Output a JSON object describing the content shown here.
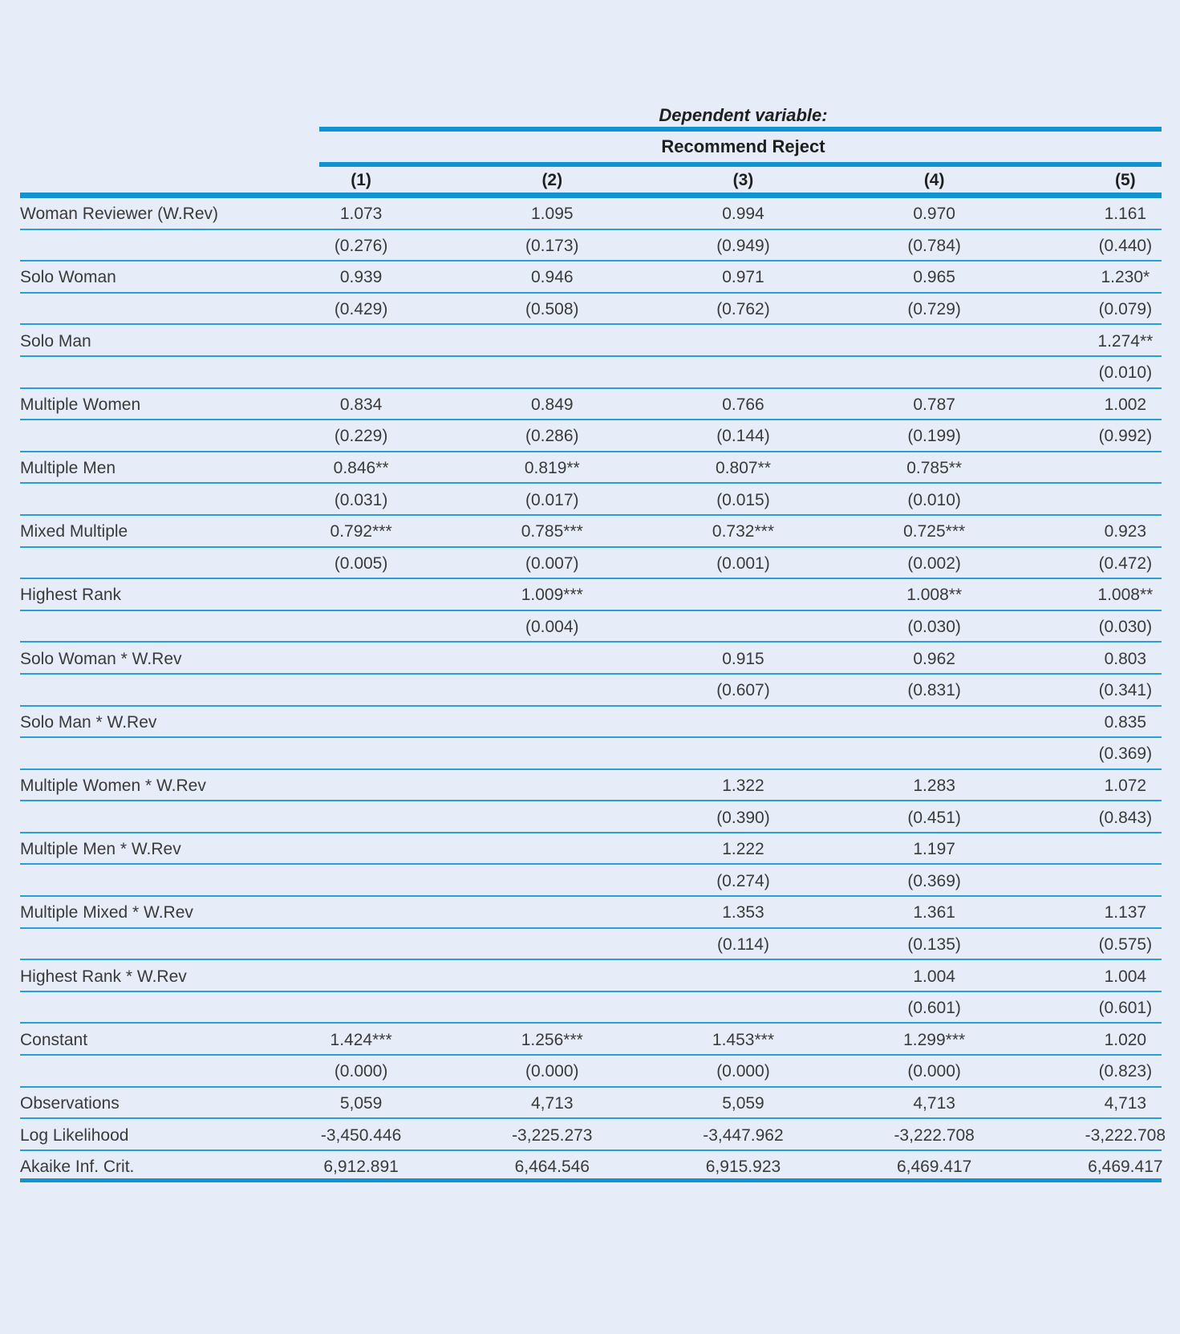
{
  "page": {
    "background": "#e6edf8"
  },
  "table": {
    "dependent_variable_heading": "Dependent variable:",
    "dependent_variable_name": "Recommend Reject",
    "column_headers": [
      "(1)",
      "(2)",
      "(3)",
      "(4)",
      "(5)"
    ],
    "coef_rows": [
      {
        "label": "Woman Reviewer (W.Rev)",
        "values": [
          "1.073",
          "1.095",
          "0.994",
          "0.970",
          "1.161"
        ],
        "pvalues": [
          "(0.276)",
          "(0.173)",
          "(0.949)",
          "(0.784)",
          "(0.440)"
        ]
      },
      {
        "label": "Solo Woman",
        "values": [
          "0.939",
          "0.946",
          "0.971",
          "0.965",
          "1.230*"
        ],
        "pvalues": [
          "(0.429)",
          "(0.508)",
          "(0.762)",
          "(0.729)",
          "(0.079)"
        ]
      },
      {
        "label": "Solo Man",
        "values": [
          "",
          "",
          "",
          "",
          "1.274**"
        ],
        "pvalues": [
          "",
          "",
          "",
          "",
          "(0.010)"
        ]
      },
      {
        "label": "Multiple Women",
        "values": [
          "0.834",
          "0.849",
          "0.766",
          "0.787",
          "1.002"
        ],
        "pvalues": [
          "(0.229)",
          "(0.286)",
          "(0.144)",
          "(0.199)",
          "(0.992)"
        ]
      },
      {
        "label": "Multiple Men",
        "values": [
          "0.846**",
          "0.819**",
          "0.807**",
          "0.785**",
          ""
        ],
        "pvalues": [
          "(0.031)",
          "(0.017)",
          "(0.015)",
          "(0.010)",
          ""
        ]
      },
      {
        "label": "Mixed Multiple",
        "values": [
          "0.792***",
          "0.785***",
          "0.732***",
          "0.725***",
          "0.923"
        ],
        "pvalues": [
          "(0.005)",
          "(0.007)",
          "(0.001)",
          "(0.002)",
          "(0.472)"
        ]
      },
      {
        "label": "Highest Rank",
        "values": [
          "",
          "1.009***",
          "",
          "1.008**",
          "1.008**"
        ],
        "pvalues": [
          "",
          "(0.004)",
          "",
          "(0.030)",
          "(0.030)"
        ]
      },
      {
        "label": "Solo Woman * W.Rev",
        "values": [
          "",
          "",
          "0.915",
          "0.962",
          "0.803"
        ],
        "pvalues": [
          "",
          "",
          "(0.607)",
          "(0.831)",
          "(0.341)"
        ]
      },
      {
        "label": "Solo Man * W.Rev",
        "values": [
          "",
          "",
          "",
          "",
          "0.835"
        ],
        "pvalues": [
          "",
          "",
          "",
          "",
          "(0.369)"
        ]
      },
      {
        "label": "Multiple Women * W.Rev",
        "values": [
          "",
          "",
          "1.322",
          "1.283",
          "1.072"
        ],
        "pvalues": [
          "",
          "",
          "(0.390)",
          "(0.451)",
          "(0.843)"
        ]
      },
      {
        "label": "Multiple Men * W.Rev",
        "values": [
          "",
          "",
          "1.222",
          "1.197",
          ""
        ],
        "pvalues": [
          "",
          "",
          "(0.274)",
          "(0.369)",
          ""
        ]
      },
      {
        "label": "Multiple Mixed * W.Rev",
        "values": [
          "",
          "",
          "1.353",
          "1.361",
          "1.137"
        ],
        "pvalues": [
          "",
          "",
          "(0.114)",
          "(0.135)",
          "(0.575)"
        ]
      },
      {
        "label": "Highest Rank * W.Rev",
        "values": [
          "",
          "",
          "",
          "1.004",
          "1.004"
        ],
        "pvalues": [
          "",
          "",
          "",
          "(0.601)",
          "(0.601)"
        ]
      },
      {
        "label": "Constant",
        "values": [
          "1.424***",
          "1.256***",
          "1.453***",
          "1.299***",
          "1.020"
        ],
        "pvalues": [
          "(0.000)",
          "(0.000)",
          "(0.000)",
          "(0.000)",
          "(0.823)"
        ]
      }
    ],
    "stat_rows": [
      {
        "label": "Observations",
        "values": [
          "5,059",
          "4,713",
          "5,059",
          "4,713",
          "4,713"
        ]
      },
      {
        "label": "Log Likelihood",
        "values": [
          "-3,450.446",
          "-3,225.273",
          "-3,447.962",
          "-3,222.708",
          "-3,222.708"
        ]
      },
      {
        "label": "Akaike Inf. Crit.",
        "values": [
          "6,912.891",
          "6,464.546",
          "6,915.923",
          "6,469.417",
          "6,469.417"
        ]
      }
    ],
    "colors": {
      "background": "#e6edf8",
      "rule_thick": "#1193d1",
      "rule_thin": "#27a0da",
      "text": "#3a3a3a"
    }
  }
}
